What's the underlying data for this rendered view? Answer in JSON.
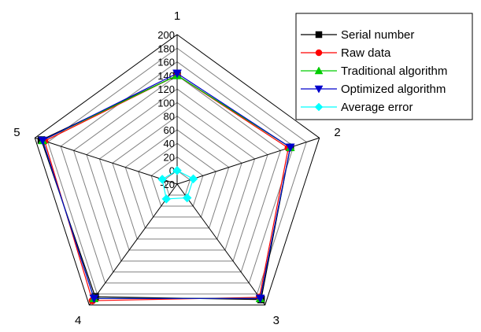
{
  "chart_data": {
    "type": "radar",
    "categories": [
      "1",
      "2",
      "3",
      "4",
      "5"
    ],
    "r_range": [
      -20,
      200
    ],
    "ticks": [
      "-20",
      "0",
      "20",
      "40",
      "60",
      "80",
      "100",
      "120",
      "140",
      "160",
      "180",
      "200"
    ],
    "tick_values": [
      -20,
      0,
      20,
      40,
      60,
      80,
      100,
      120,
      140,
      160,
      180,
      200
    ],
    "grid": true,
    "legend_position": "top-right",
    "series": [
      {
        "name": "Serial number",
        "color": "#000000",
        "marker": "square",
        "values": [
          140,
          155,
          190,
          185,
          190
        ]
      },
      {
        "name": "Raw data",
        "color": "#ff0000",
        "marker": "circle",
        "values": [
          140,
          152,
          186,
          192,
          185
        ]
      },
      {
        "name": "Traditional algorithm",
        "color": "#00cc00",
        "marker": "triangle-up",
        "values": [
          140,
          155,
          188,
          188,
          188
        ]
      },
      {
        "name": "Optimized algorithm",
        "color": "#0000cc",
        "marker": "triangle-down",
        "values": [
          143,
          155,
          188,
          188,
          188
        ]
      },
      {
        "name": "Average error",
        "color": "#00ffff",
        "marker": "diamond",
        "values": [
          0,
          5,
          5,
          7,
          3
        ]
      }
    ]
  }
}
